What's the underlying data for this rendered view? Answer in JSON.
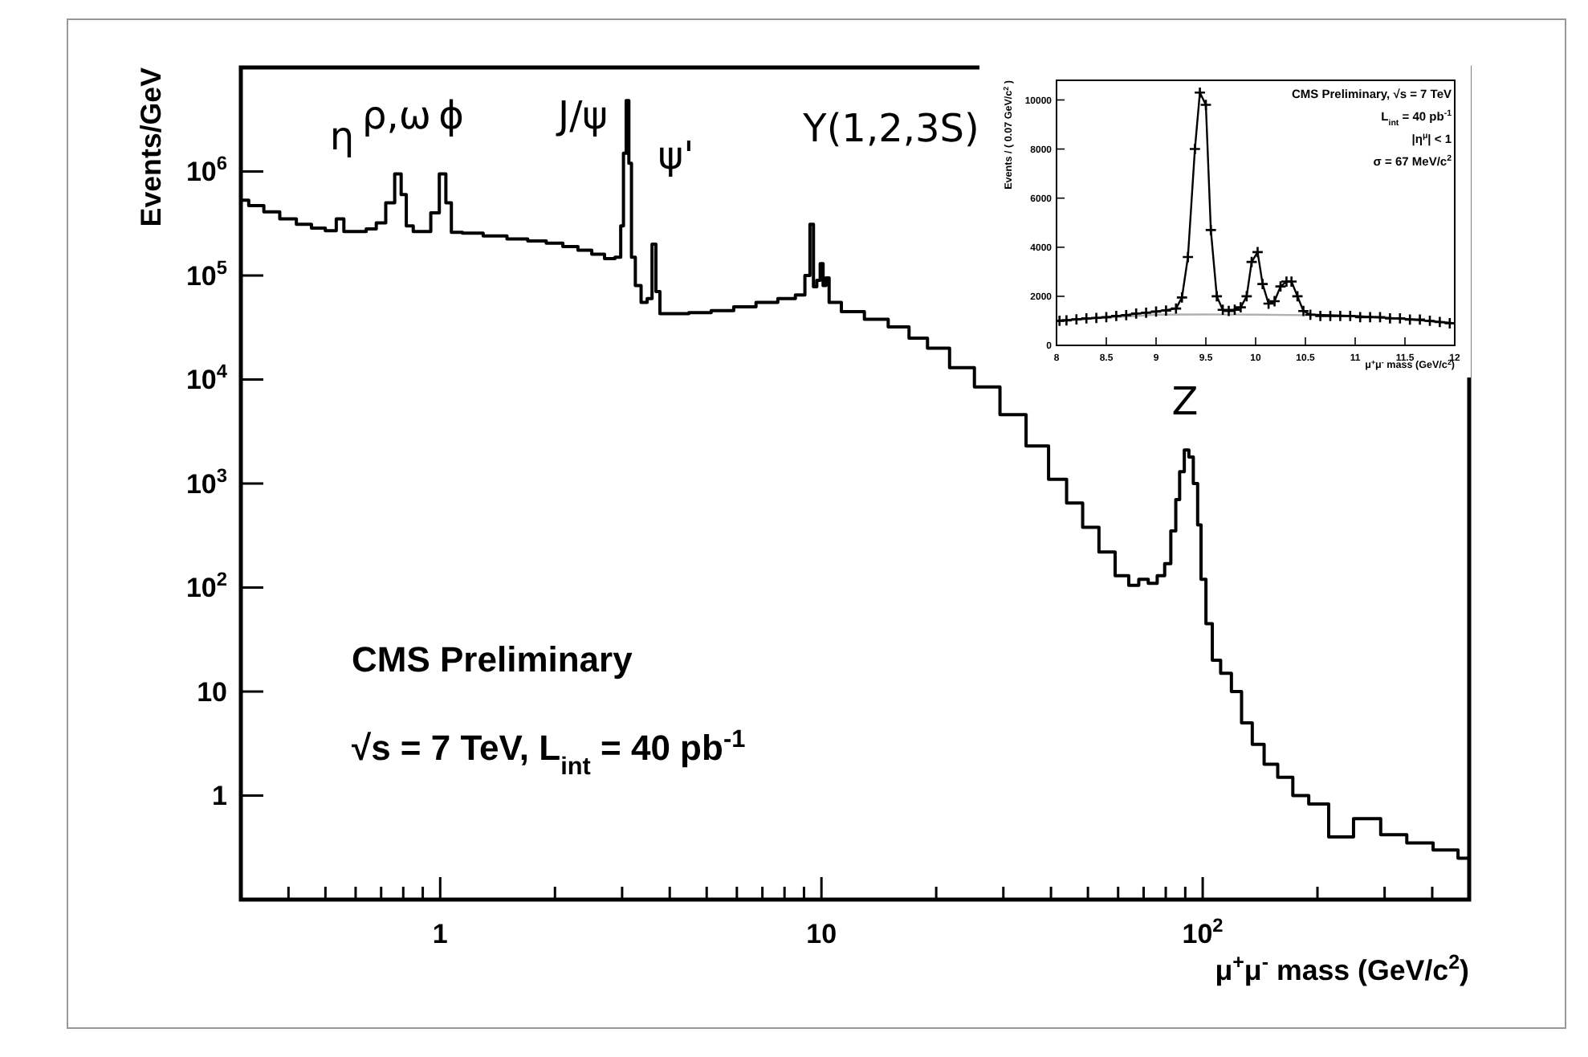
{
  "chart_data": [
    {
      "type": "step",
      "xlabel": "μ$^{+}$μ$^{-}$ mass (GeV/c$^{2}$)",
      "ylabel": "Events/GeV",
      "log": "xy",
      "color": "#000000",
      "xlim": [
        0.3,
        500
      ],
      "ylim": [
        0.1,
        10000000
      ],
      "xticks": [
        {
          "value": 0.4,
          "label": null
        },
        {
          "value": 0.5,
          "label": null
        },
        {
          "value": 0.6,
          "label": null
        },
        {
          "value": 0.7,
          "label": null
        },
        {
          "value": 0.8,
          "label": null
        },
        {
          "value": 0.9,
          "label": null
        },
        1,
        {
          "value": 2,
          "label": null
        },
        {
          "value": 3,
          "label": null
        },
        {
          "value": 4,
          "label": null
        },
        {
          "value": 5,
          "label": null
        },
        {
          "value": 6,
          "label": null
        },
        {
          "value": 7,
          "label": null
        },
        {
          "value": 8,
          "label": null
        },
        {
          "value": 9,
          "label": null
        },
        10,
        {
          "value": 20,
          "label": null
        },
        {
          "value": 30,
          "label": null
        },
        {
          "value": 40,
          "label": null
        },
        {
          "value": 50,
          "label": null
        },
        {
          "value": 60,
          "label": null
        },
        {
          "value": 70,
          "label": null
        },
        {
          "value": 80,
          "label": null
        },
        {
          "value": 90,
          "label": null
        },
        {
          "value": 100,
          "label": "10$^{2}$"
        },
        {
          "value": 200,
          "label": null
        },
        {
          "value": 300,
          "label": null
        },
        {
          "value": 400,
          "label": null
        }
      ],
      "yticks": [
        1,
        10,
        {
          "value": 100,
          "label": "10$^{2}$"
        },
        {
          "value": 1000,
          "label": "10$^{3}$"
        },
        {
          "value": 10000,
          "label": "10$^{4}$"
        },
        {
          "value": 100000,
          "label": "10$^{5}$"
        },
        {
          "value": 1000000,
          "label": "10$^{6}$"
        }
      ],
      "x": [
        0.3,
        0.33,
        0.36,
        0.4,
        0.44,
        0.48,
        0.52,
        0.548,
        0.57,
        0.62,
        0.66,
        0.7,
        0.74,
        0.78,
        0.8,
        0.83,
        0.87,
        0.92,
        0.97,
        1.02,
        1.05,
        1.09,
        1.2,
        1.4,
        1.6,
        1.8,
        2.0,
        2.2,
        2.4,
        2.6,
        2.8,
        2.95,
        3.0,
        3.05,
        3.1,
        3.15,
        3.2,
        3.3,
        3.43,
        3.55,
        3.64,
        3.72,
        3.82,
        4.2,
        4.8,
        5.5,
        6.3,
        7.2,
        8.2,
        8.9,
        9.2,
        9.46,
        9.6,
        9.85,
        10.0,
        10.2,
        10.35,
        10.6,
        12,
        14,
        16,
        18,
        20,
        23.5,
        27,
        32,
        37,
        42,
        46,
        51,
        56,
        62,
        66,
        70,
        74,
        78,
        81,
        84,
        86,
        88,
        91,
        93,
        96,
        98,
        100,
        104,
        108,
        115,
        123,
        130,
        140,
        150,
        165,
        180,
        200,
        229,
        270,
        318,
        370,
        437,
        500
      ],
      "values": [
        530000,
        470000,
        410000,
        350000,
        310000,
        285000,
        270000,
        350000,
        265000,
        265000,
        280000,
        320000,
        500000,
        950000,
        600000,
        300000,
        265000,
        265000,
        400000,
        950000,
        500000,
        260000,
        255000,
        240000,
        225000,
        215000,
        205000,
        190000,
        175000,
        160000,
        145000,
        150000,
        300000,
        1500000,
        4800000,
        1200000,
        150000,
        80000,
        55000,
        60000,
        200000,
        70000,
        43000,
        43000,
        44000,
        46000,
        50000,
        55000,
        60000,
        65000,
        100000,
        310000,
        78000,
        90000,
        130000,
        80000,
        95000,
        55000,
        45000,
        38000,
        32000,
        25000,
        20000,
        13000,
        8500,
        4600,
        2300,
        1100,
        650,
        380,
        220,
        130,
        105,
        120,
        110,
        130,
        170,
        350,
        700,
        1300,
        2100,
        1800,
        1000,
        400,
        120,
        45,
        20,
        15,
        10,
        5,
        3.1,
        2,
        1.5,
        1,
        0.83,
        0.4,
        0.6,
        0.42,
        0.35,
        0.3,
        0.25
      ],
      "annotations": [
        "η",
        "ρ,ω",
        "ϕ",
        "J/ψ",
        "ψ'",
        "Υ(1,2,3S)",
        "Z",
        "CMS Preliminary",
        "√s = 7 TeV,  L$_{int}$ = 40 pb$^{-1}$"
      ]
    },
    {
      "type": "scatter",
      "xlabel": "μ$^{+}$μ$^{-}$ mass (GeV/c$^{2}$)",
      "ylabel": "Events / ( 0.07 GeV/c$^{2}$ )",
      "xlim": [
        8,
        12
      ],
      "ylim": [
        0,
        10800
      ],
      "xticks": [
        8,
        8.5,
        9,
        9.5,
        10,
        10.5,
        11,
        11.5,
        12
      ],
      "yticks": [
        0,
        2000,
        4000,
        6000,
        8000,
        10000
      ],
      "series": [
        {
          "type": "line",
          "color": "#b0b0b0",
          "x": [
            8,
            9,
            9.5,
            10,
            10.5,
            11,
            11.5,
            12
          ],
          "values": [
            1000,
            1250,
            1260,
            1250,
            1230,
            1180,
            1080,
            900
          ]
        },
        {
          "type": "line",
          "color": "#000000",
          "x": [
            8,
            8.5,
            9,
            9.2,
            9.26,
            9.32,
            9.39,
            9.44,
            9.5,
            9.55,
            9.61,
            9.67,
            9.73,
            9.79,
            9.85,
            9.91,
            9.96,
            10.02,
            10.07,
            10.13,
            10.19,
            10.25,
            10.31,
            10.36,
            10.42,
            10.48,
            10.55,
            11,
            11.5,
            12
          ],
          "values": [
            1000,
            1150,
            1380,
            1500,
            1950,
            3600,
            8000,
            10300,
            9800,
            4700,
            2000,
            1450,
            1400,
            1450,
            1550,
            2000,
            3400,
            3800,
            2500,
            1700,
            1800,
            2400,
            2600,
            2600,
            2000,
            1400,
            1250,
            1200,
            1080,
            900
          ]
        },
        {
          "color": "#000000",
          "marker": "cross",
          "x": [
            8.03,
            8.1,
            8.2,
            8.3,
            8.4,
            8.5,
            8.6,
            8.7,
            8.8,
            8.9,
            9.0,
            9.1,
            9.2,
            9.26,
            9.32,
            9.39,
            9.44,
            9.5,
            9.55,
            9.61,
            9.67,
            9.73,
            9.79,
            9.85,
            9.91,
            9.96,
            10.02,
            10.07,
            10.13,
            10.19,
            10.25,
            10.31,
            10.36,
            10.42,
            10.48,
            10.55,
            10.65,
            10.75,
            10.85,
            10.95,
            11.05,
            11.15,
            11.25,
            11.35,
            11.45,
            11.55,
            11.65,
            11.75,
            11.85,
            11.95
          ],
          "values": [
            1000,
            1020,
            1060,
            1100,
            1120,
            1150,
            1200,
            1230,
            1300,
            1330,
            1380,
            1420,
            1500,
            1950,
            3600,
            8000,
            10300,
            9800,
            4700,
            2000,
            1450,
            1400,
            1450,
            1550,
            2000,
            3400,
            3800,
            2500,
            1700,
            1800,
            2400,
            2600,
            2600,
            2000,
            1400,
            1250,
            1200,
            1200,
            1200,
            1200,
            1150,
            1150,
            1150,
            1100,
            1100,
            1050,
            1050,
            1000,
            950,
            900
          ]
        }
      ],
      "annotations": [
        "CMS Preliminary, √s = 7 TeV",
        "L$_{int}$ = 40 pb$^{-1}$",
        "|η$^{μ}$| < 1",
        "σ = 67 MeV/c$^{2}$"
      ]
    }
  ]
}
